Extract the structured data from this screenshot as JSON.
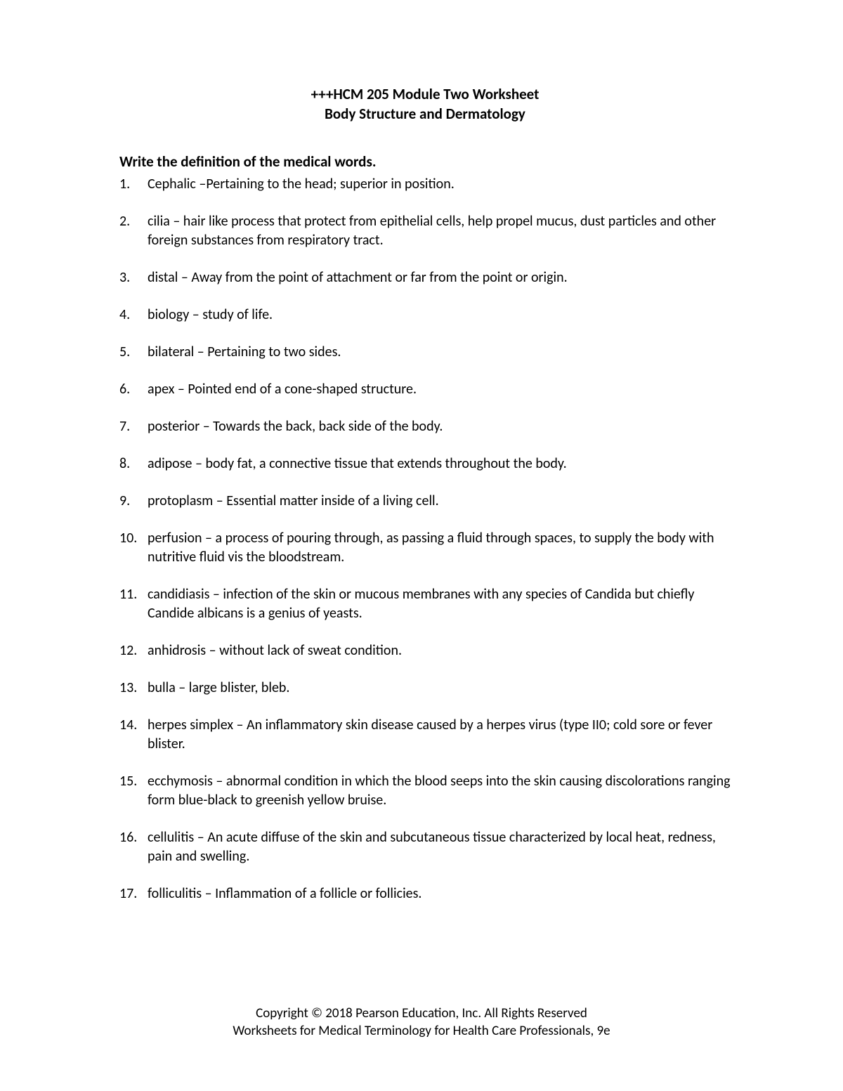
{
  "title_line1": "+++HCM 205 Module Two Worksheet",
  "title_line2": "Body Structure and Dermatology",
  "instruction": "Write the definition of the medical words.",
  "definitions": [
    "Cephalic –Pertaining to the head; superior in position.",
    "cilia – hair like process that protect from epithelial cells, help propel mucus, dust particles and other foreign substances from respiratory tract.",
    "distal – Away from the point of attachment or far from the point or origin.",
    "biology – study of life.",
    "bilateral – Pertaining to two sides.",
    "apex – Pointed end of a cone-shaped structure.",
    "posterior – Towards the back, back side of the body.",
    "adipose – body fat, a connective tissue that extends throughout the body.",
    "protoplasm – Essential matter inside of a living cell.",
    "perfusion – a process of pouring through, as passing a fluid through spaces, to supply the body with nutritive fluid vis the bloodstream.",
    "candidiasis – infection of the skin or mucous membranes with any species of Candida but chiefly Candide albicans is a genius of yeasts.",
    "anhidrosis – without lack of sweat condition.",
    "bulla – large blister, bleb.",
    "herpes simplex – An inflammatory skin disease caused by a herpes virus (type II0; cold sore or fever blister.",
    "ecchymosis – abnormal condition in which the blood seeps into the skin causing discolorations ranging form blue-black to greenish yellow bruise.",
    "cellulitis – An acute diffuse of the skin and subcutaneous tissue characterized by local heat, redness, pain and swelling.",
    "folliculitis – Inflammation of a follicle or follicies."
  ],
  "footer_line1": "Copyright © 2018 Pearson Education, Inc. All Rights Reserved",
  "footer_line2": "Worksheets for Medical Terminology for Health Care Professionals, 9e"
}
